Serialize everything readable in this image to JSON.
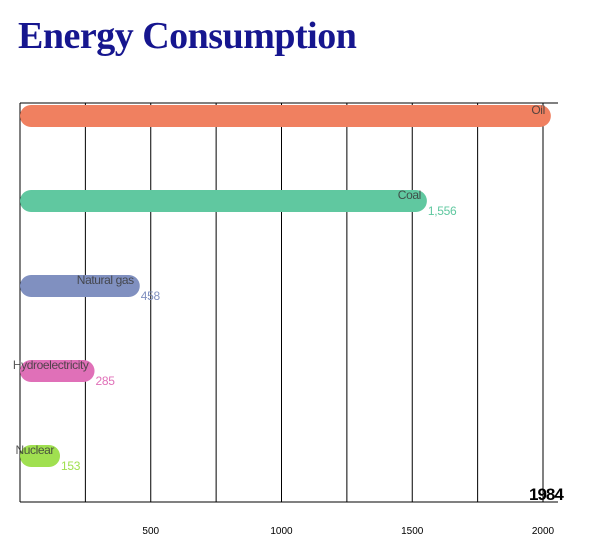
{
  "chart_data": {
    "type": "bar",
    "orientation": "horizontal",
    "title": "Energy Consumption",
    "year": "1984",
    "categories": [
      "Oil",
      "Coal",
      "Natural gas",
      "Hydroelectricity",
      "Nuclear"
    ],
    "values": [
      2030,
      1556,
      458,
      285,
      153
    ],
    "value_labels": [
      "",
      "1,556",
      "458",
      "285",
      "153"
    ],
    "colors": [
      "#f08060",
      "#60c8a0",
      "#8090c0",
      "#e070b8",
      "#a0e050"
    ],
    "value_label_colors": [
      "#f08060",
      "#60c8a0",
      "#8090c0",
      "#e070b8",
      "#a0e050"
    ],
    "xticks": [
      500,
      1000,
      1500,
      2000
    ],
    "xlim": [
      0,
      2000
    ],
    "grid": true,
    "legend": "none"
  }
}
